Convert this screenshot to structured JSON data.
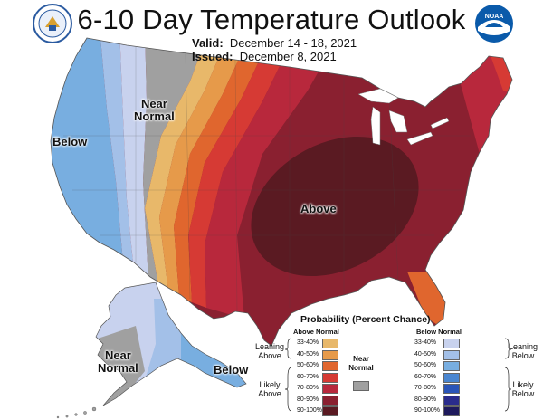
{
  "title": "6-10 Day Temperature Outlook",
  "valid_label": "Valid:",
  "valid_dates": "December 14 - 18, 2021",
  "issued_label": "Issued:",
  "issued_date": "December 8, 2021",
  "logos": {
    "left": "commerce-seal",
    "right": "noaa-logo"
  },
  "map_labels": {
    "below": "Below",
    "near_normal_1": "Near",
    "near_normal_2": "Normal",
    "above": "Above",
    "ak_near_1": "Near",
    "ak_near_2": "Normal",
    "ak_below": "Below"
  },
  "legend": {
    "title": "Probability (Percent Chance)",
    "above_header": "Above Normal",
    "below_header": "Below Normal",
    "near_1": "Near",
    "near_2": "Normal",
    "leaning_above_1": "Leaning",
    "leaning_above_2": "Above",
    "likely_above_1": "Likely",
    "likely_above_2": "Above",
    "leaning_below_1": "Leaning",
    "leaning_below_2": "Below",
    "likely_below_1": "Likely",
    "likely_below_2": "Below",
    "above_bins": [
      {
        "label": "33-40%",
        "color": "#e8b86a"
      },
      {
        "label": "40-50%",
        "color": "#e69a4a"
      },
      {
        "label": "50-60%",
        "color": "#e0662e"
      },
      {
        "label": "60-70%",
        "color": "#d63a34"
      },
      {
        "label": "70-80%",
        "color": "#b8283c"
      },
      {
        "label": "80-90%",
        "color": "#8a2030"
      },
      {
        "label": "90-100%",
        "color": "#5a1a22"
      }
    ],
    "below_bins": [
      {
        "label": "33-40%",
        "color": "#c8d2ee"
      },
      {
        "label": "40-50%",
        "color": "#a3c0e8"
      },
      {
        "label": "50-60%",
        "color": "#78aee0"
      },
      {
        "label": "60-70%",
        "color": "#4a86d0"
      },
      {
        "label": "70-80%",
        "color": "#2a55b8"
      },
      {
        "label": "80-90%",
        "color": "#2a2c8c"
      },
      {
        "label": "90-100%",
        "color": "#1e1a5c"
      }
    ],
    "near_color": "#a0a0a0"
  }
}
